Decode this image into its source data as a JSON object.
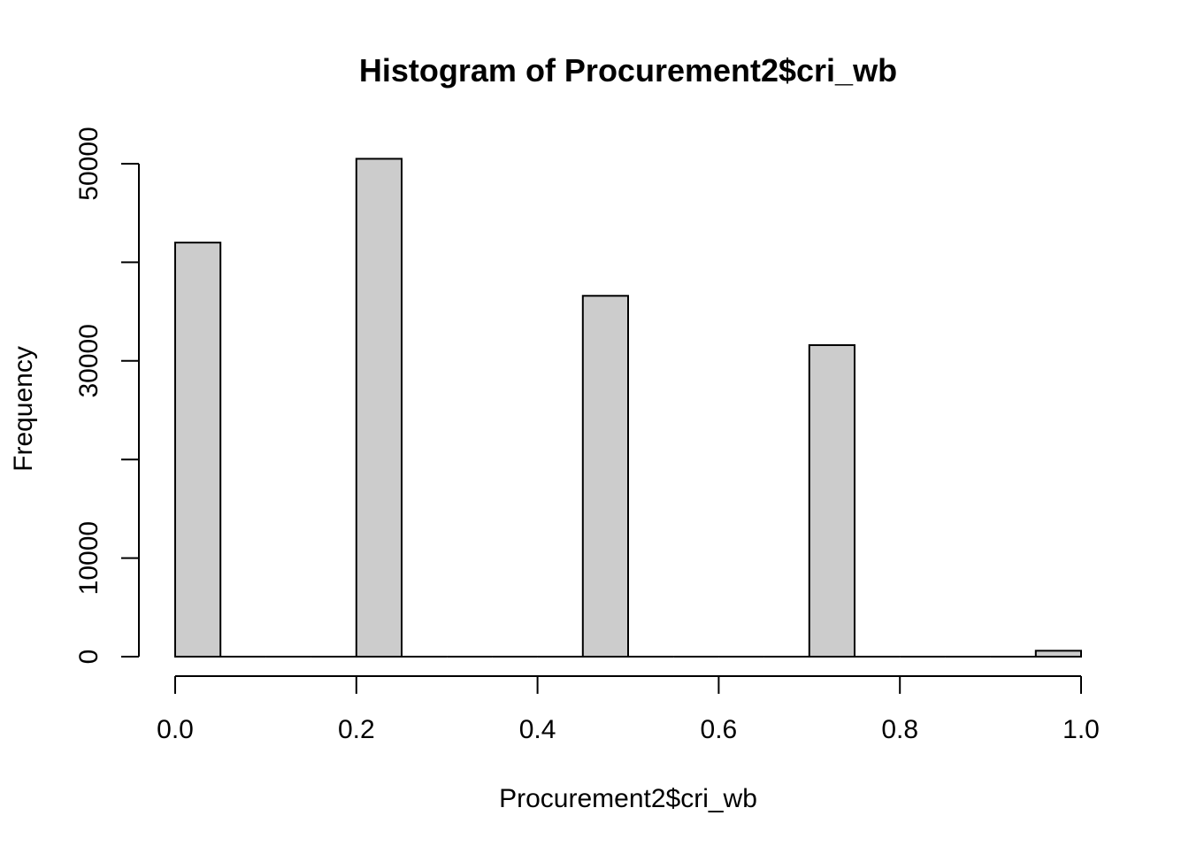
{
  "chart_data": {
    "type": "bar",
    "title": "Histogram of Procurement2$cri_wb",
    "xlabel": "Procurement2$cri_wb",
    "ylabel": "Frequency",
    "xlim": [
      0,
      1
    ],
    "ylim": [
      0,
      50000
    ],
    "bin_width": 0.05,
    "bins": [
      {
        "x0": 0.0,
        "x1": 0.05,
        "value": 42000
      },
      {
        "x0": 0.05,
        "x1": 0.1,
        "value": 0
      },
      {
        "x0": 0.1,
        "x1": 0.15,
        "value": 0
      },
      {
        "x0": 0.15,
        "x1": 0.2,
        "value": 0
      },
      {
        "x0": 0.2,
        "x1": 0.25,
        "value": 50500
      },
      {
        "x0": 0.25,
        "x1": 0.3,
        "value": 0
      },
      {
        "x0": 0.3,
        "x1": 0.35,
        "value": 0
      },
      {
        "x0": 0.35,
        "x1": 0.4,
        "value": 0
      },
      {
        "x0": 0.4,
        "x1": 0.45,
        "value": 0
      },
      {
        "x0": 0.45,
        "x1": 0.5,
        "value": 36600
      },
      {
        "x0": 0.5,
        "x1": 0.55,
        "value": 0
      },
      {
        "x0": 0.55,
        "x1": 0.6,
        "value": 0
      },
      {
        "x0": 0.6,
        "x1": 0.65,
        "value": 0
      },
      {
        "x0": 0.65,
        "x1": 0.7,
        "value": 0
      },
      {
        "x0": 0.7,
        "x1": 0.75,
        "value": 31600
      },
      {
        "x0": 0.75,
        "x1": 0.8,
        "value": 0
      },
      {
        "x0": 0.8,
        "x1": 0.85,
        "value": 0
      },
      {
        "x0": 0.85,
        "x1": 0.9,
        "value": 0
      },
      {
        "x0": 0.9,
        "x1": 0.95,
        "value": 0
      },
      {
        "x0": 0.95,
        "x1": 1.0,
        "value": 600
      }
    ],
    "x_ticks": [
      {
        "value": 0.0,
        "label": "0.0"
      },
      {
        "value": 0.2,
        "label": "0.2"
      },
      {
        "value": 0.4,
        "label": "0.4"
      },
      {
        "value": 0.6,
        "label": "0.6"
      },
      {
        "value": 0.8,
        "label": "0.8"
      },
      {
        "value": 1.0,
        "label": "1.0"
      }
    ],
    "y_ticks": [
      {
        "value": 0,
        "label": "0"
      },
      {
        "value": 10000,
        "label": "10000"
      },
      {
        "value": 20000,
        "label": ""
      },
      {
        "value": 30000,
        "label": "30000"
      },
      {
        "value": 40000,
        "label": ""
      },
      {
        "value": 50000,
        "label": "50000"
      }
    ],
    "grid": false,
    "bar_color": "#cccccc",
    "edge_color": "#000000"
  }
}
